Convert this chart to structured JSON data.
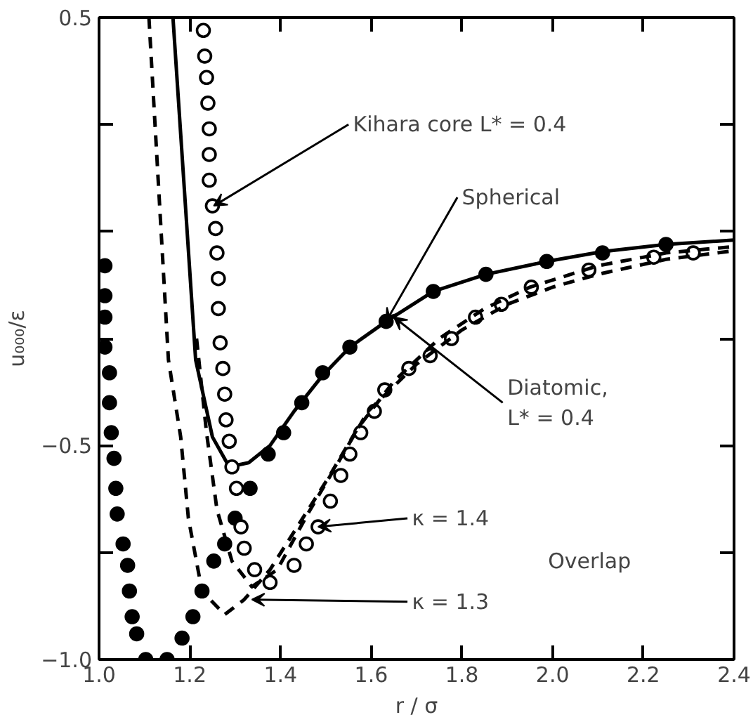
{
  "chart_data": {
    "type": "line",
    "xlabel": "r / σ",
    "ylabel": "u₀₀₀/ε",
    "xlim": [
      1.0,
      2.4
    ],
    "ylim": [
      -1.0,
      0.5
    ],
    "xticks": [
      {
        "value": 1.0,
        "label": "1.0"
      },
      {
        "value": 1.2,
        "label": "1.2"
      },
      {
        "value": 1.4,
        "label": "1.4"
      },
      {
        "value": 1.6,
        "label": "1.6"
      },
      {
        "value": 1.8,
        "label": "1.8"
      },
      {
        "value": 2.0,
        "label": "2.0"
      },
      {
        "value": 2.2,
        "label": "2.2"
      },
      {
        "value": 2.4,
        "label": "2.4"
      }
    ],
    "yticks": [
      {
        "value": -1.0,
        "label": "−1.0"
      },
      {
        "value": -0.75,
        "label": null
      },
      {
        "value": -0.5,
        "label": "−0.5"
      },
      {
        "value": -0.25,
        "label": null
      },
      {
        "value": 0,
        "label": null
      },
      {
        "value": 0.25,
        "label": null
      },
      {
        "value": 0.5,
        "label": "0.5"
      }
    ],
    "grid": false,
    "series": [
      {
        "line_style": "solid",
        "color": "#000000",
        "x": [
          1.163,
          1.213,
          1.25,
          1.287,
          1.33,
          1.377,
          1.43,
          1.49,
          1.553,
          1.633,
          1.737,
          1.853,
          1.987,
          2.11,
          2.25,
          2.4
        ],
        "values": [
          0.5,
          -0.3,
          -0.48,
          -0.55,
          -0.54,
          -0.5,
          -0.42,
          -0.34,
          -0.27,
          -0.21,
          -0.14,
          -0.1,
          -0.07,
          -0.047,
          -0.03,
          -0.02
        ]
      },
      {
        "type": "scatter",
        "marker": "circle",
        "color": "#000000",
        "x": [
          1.013,
          1.013,
          1.013,
          1.013,
          1.023,
          1.023,
          1.027,
          1.033,
          1.037,
          1.04,
          1.053,
          1.063,
          1.067,
          1.073,
          1.083,
          1.103,
          1.15,
          1.183,
          1.207,
          1.227,
          1.253,
          1.277,
          1.3,
          1.333,
          1.373,
          1.407,
          1.447,
          1.493,
          1.553,
          1.633,
          1.737,
          1.853,
          1.987,
          2.11,
          2.25
        ],
        "values": [
          -0.08,
          -0.15,
          -0.2,
          -0.27,
          -0.33,
          -0.4,
          -0.47,
          -0.53,
          -0.6,
          -0.66,
          -0.73,
          -0.78,
          -0.84,
          -0.9,
          -0.94,
          -1.0,
          -1.0,
          -0.95,
          -0.9,
          -0.84,
          -0.77,
          -0.73,
          -0.67,
          -0.6,
          -0.52,
          -0.47,
          -0.4,
          -0.33,
          -0.27,
          -0.21,
          -0.14,
          -0.1,
          -0.07,
          -0.05,
          -0.03
        ]
      },
      {
        "type": "scatter",
        "marker": "circle",
        "color": "#000000",
        "x": [
          1.23,
          1.233,
          1.237,
          1.24,
          1.243,
          1.243,
          1.243,
          1.25,
          1.257,
          1.26,
          1.263,
          1.263,
          1.267,
          1.273,
          1.277,
          1.28,
          1.287,
          1.293,
          1.303,
          1.313,
          1.32,
          1.343,
          1.377,
          1.43,
          1.457,
          1.483,
          1.51,
          1.533,
          1.553,
          1.577,
          1.607,
          1.63,
          1.683,
          1.73,
          1.777,
          1.83,
          1.887,
          1.953,
          2.08,
          2.223,
          2.31
        ],
        "values": [
          0.47,
          0.41,
          0.36,
          0.3,
          0.24,
          0.18,
          0.12,
          0.06,
          0.007,
          -0.05,
          -0.11,
          -0.18,
          -0.26,
          -0.32,
          -0.38,
          -0.44,
          -0.49,
          -0.55,
          -0.6,
          -0.69,
          -0.74,
          -0.79,
          -0.82,
          -0.78,
          -0.73,
          -0.69,
          -0.63,
          -0.57,
          -0.52,
          -0.47,
          -0.42,
          -0.37,
          -0.32,
          -0.29,
          -0.25,
          -0.2,
          -0.17,
          -0.13,
          -0.09,
          -0.06,
          -0.05
        ]
      },
      {
        "line_style": "dashed",
        "color": "#000000",
        "x": [
          1.11,
          1.153,
          1.18,
          1.197,
          1.227,
          1.277,
          1.32,
          1.377,
          1.437,
          1.503,
          1.57,
          1.65,
          1.75,
          1.85,
          1.95,
          2.1,
          2.25,
          2.4
        ],
        "values": [
          0.5,
          -0.3,
          -0.48,
          -0.67,
          -0.84,
          -0.895,
          -0.86,
          -0.79,
          -0.69,
          -0.58,
          -0.46,
          -0.35,
          -0.25,
          -0.18,
          -0.13,
          -0.08,
          -0.05,
          -0.035
        ]
      },
      {
        "line_style": "dashed",
        "color": "#000000",
        "x": [
          1.215,
          1.237,
          1.26,
          1.293,
          1.337,
          1.393,
          1.46,
          1.527,
          1.593,
          1.7,
          1.8,
          1.9,
          2.0,
          2.1,
          2.25,
          2.4
        ],
        "values": [
          -0.25,
          -0.47,
          -0.65,
          -0.77,
          -0.83,
          -0.79,
          -0.66,
          -0.54,
          -0.42,
          -0.31,
          -0.23,
          -0.17,
          -0.13,
          -0.1,
          -0.065,
          -0.045
        ]
      }
    ],
    "annotations": [
      {
        "text": "Kihara core L* = 0.4",
        "x": 1.253,
        "y": 0.06
      },
      {
        "text": "Spherical",
        "x": 1.633,
        "y": -0.21
      },
      {
        "text": "Diatomic,\nL* = 0.4",
        "x": 1.65,
        "y": -0.2
      },
      {
        "text": "κ = 1.4",
        "x": 1.483,
        "y": -0.69
      },
      {
        "text": "κ = 1.3",
        "x": 1.337,
        "y": -0.86
      },
      "Overlap"
    ]
  }
}
